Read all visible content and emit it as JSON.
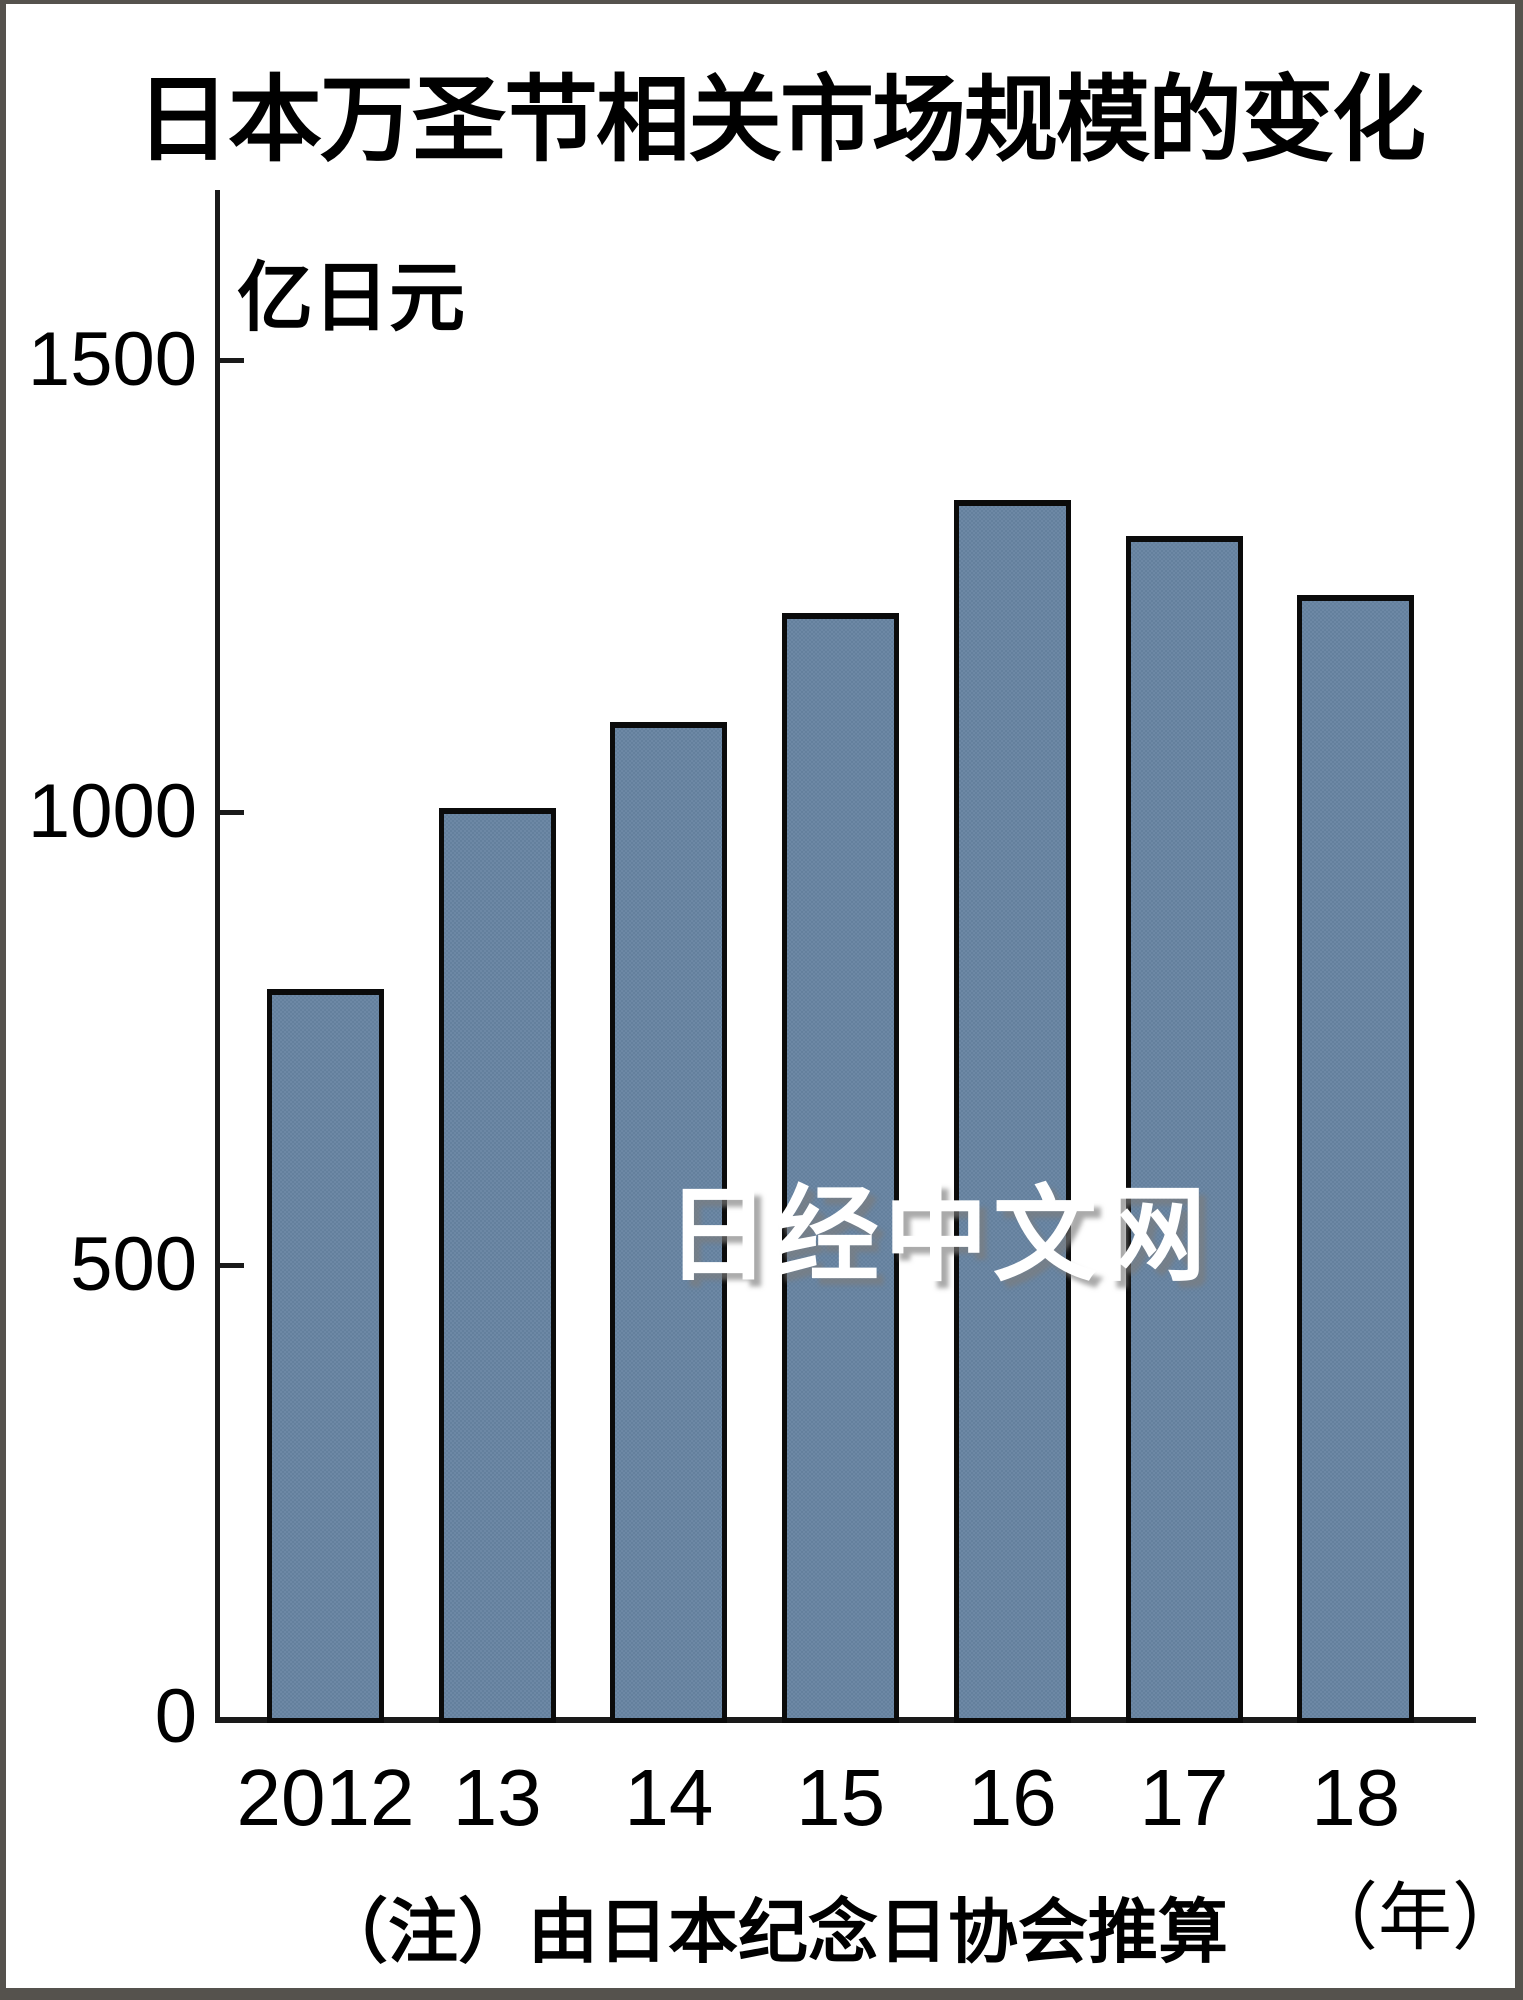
{
  "title": "日本万圣节相关市场规模的变化",
  "unit_label": "亿日元",
  "watermark": "日经中文网",
  "note": "（注）由日本纪念日协会推算",
  "year_suffix": "（年）",
  "colors": {
    "bar_fill": "#66819e",
    "bar_border": "#0b0b0b",
    "axis": "#1a1a1a",
    "frame": "#55524d",
    "watermark_text": "#ffffff"
  },
  "chart_data": {
    "type": "bar",
    "title": "日本万圣节相关市场规模的变化",
    "categories": [
      "2012",
      "13",
      "14",
      "15",
      "16",
      "17",
      "18"
    ],
    "values": [
      805,
      1005,
      1100,
      1220,
      1345,
      1305,
      1240
    ],
    "xlabel": "（年）",
    "ylabel": "亿日元",
    "yticks": [
      0,
      500,
      1000,
      1500
    ],
    "ylim": [
      0,
      1600
    ],
    "grid": false,
    "legend": false,
    "note": "（注）由日本纪念日协会推算"
  }
}
